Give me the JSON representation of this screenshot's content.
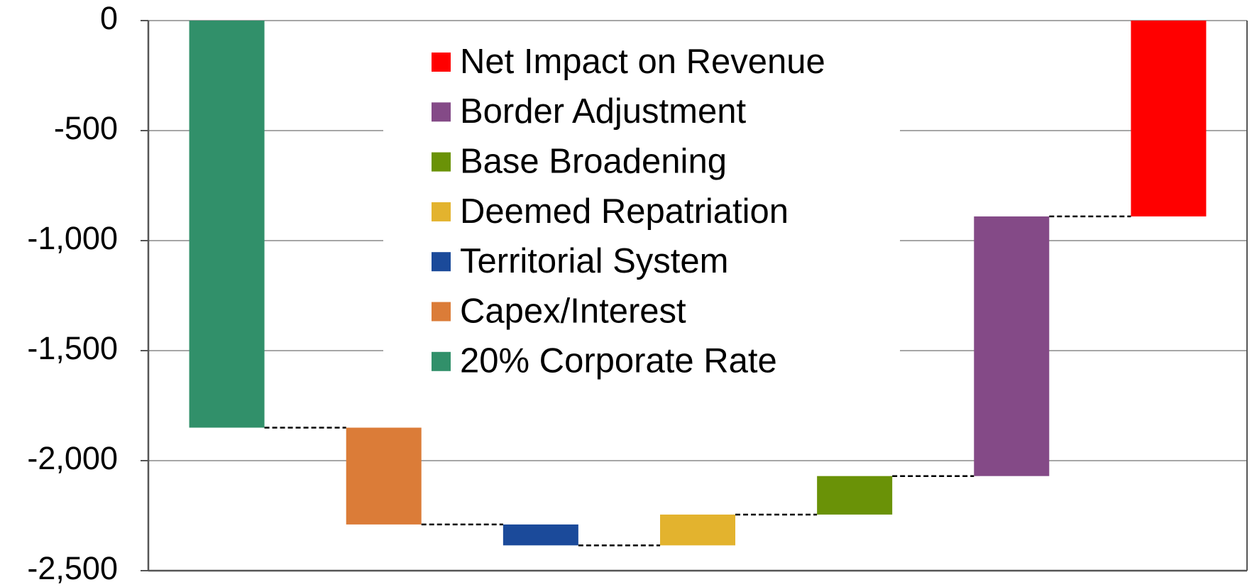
{
  "chart_data": {
    "type": "waterfall",
    "series": [
      {
        "name": "20% Corporate Rate",
        "color": "#31906a",
        "values": [
          -1850
        ]
      },
      {
        "name": "Capex/Interest",
        "color": "#db7c38",
        "values": [
          -440
        ]
      },
      {
        "name": "Territorial System",
        "color": "#1b4a9a",
        "values": [
          -95
        ]
      },
      {
        "name": "Deemed Repatriation",
        "color": "#e3b32e",
        "values": [
          140
        ]
      },
      {
        "name": "Base Broadening",
        "color": "#6a9207",
        "values": [
          175
        ]
      },
      {
        "name": "Border Adjustment",
        "color": "#844a87",
        "values": [
          1180
        ]
      },
      {
        "name": "Net Impact on Revenue",
        "color": "#ff0000",
        "values": [
          -890
        ]
      }
    ],
    "ylim": [
      -2500,
      0
    ],
    "yticks": [
      0,
      -500,
      {
        "value": -1000,
        "label": "-1,000"
      },
      {
        "value": -1500,
        "label": "-1,500"
      },
      {
        "value": -2000,
        "label": "-2,000"
      },
      {
        "value": -2500,
        "label": "-2,500"
      }
    ],
    "grid": true
  }
}
